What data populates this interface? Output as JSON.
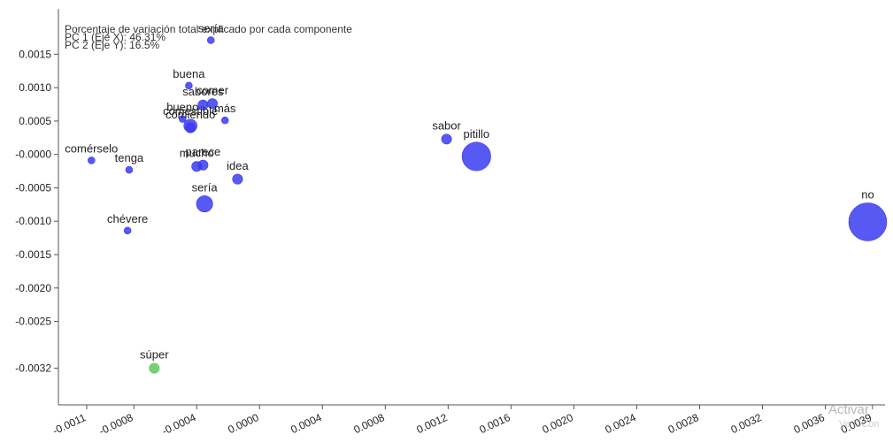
{
  "chart_data": {
    "type": "scatter",
    "title_lines": [
      "Porcentaje de variación total explicado por cada componente",
      "PC 1 (Eje X): 46.31%",
      "PC 2 (Eje Y): 16.5%"
    ],
    "xlim": [
      -0.00128,
      0.00398
    ],
    "ylim": [
      -0.00375,
      0.00218
    ],
    "x_ticks": [
      {
        "value": -0.0011,
        "label": "-0.0011"
      },
      {
        "value": -0.0008,
        "label": "-0.0008"
      },
      {
        "value": -0.0004,
        "label": "-0.0004"
      },
      {
        "value": 0.0,
        "label": "0.0000"
      },
      {
        "value": 0.0004,
        "label": "0.0004"
      },
      {
        "value": 0.0008,
        "label": "0.0008"
      },
      {
        "value": 0.0012,
        "label": "0.0012"
      },
      {
        "value": 0.0016,
        "label": "0.0016"
      },
      {
        "value": 0.002,
        "label": "0.0020"
      },
      {
        "value": 0.0024,
        "label": "0.0024"
      },
      {
        "value": 0.0028,
        "label": "0.0028"
      },
      {
        "value": 0.0032,
        "label": "0.0032"
      },
      {
        "value": 0.0036,
        "label": "0.0036"
      },
      {
        "value": 0.0039,
        "label": "0.0039"
      }
    ],
    "y_ticks": [
      {
        "value": 0.0015,
        "label": "0.0015"
      },
      {
        "value": 0.001,
        "label": "0.0010"
      },
      {
        "value": 0.0005,
        "label": "0.0005"
      },
      {
        "value": 0.0,
        "label": "-0.0000"
      },
      {
        "value": -0.0005,
        "label": "-0.0005"
      },
      {
        "value": -0.001,
        "label": "-0.0010"
      },
      {
        "value": -0.0015,
        "label": "-0.0015"
      },
      {
        "value": -0.002,
        "label": "-0.0020"
      },
      {
        "value": -0.0025,
        "label": "-0.0025"
      },
      {
        "value": -0.0032,
        "label": "-0.0032"
      }
    ],
    "grid": false,
    "colors": {
      "default": "#3b3bf0",
      "highlight": "#5ec95e",
      "axis": "#555555"
    },
    "points": [
      {
        "label": "sería",
        "x": -0.00031,
        "y": 0.00171,
        "size": 1
      },
      {
        "label": "buena",
        "x": -0.00045,
        "y": 0.00103,
        "size": 1
      },
      {
        "label": "sabores",
        "x": -0.00036,
        "y": 0.00074,
        "size": 2
      },
      {
        "label": "comer",
        "x": -0.0003,
        "y": 0.00076,
        "size": 2
      },
      {
        "label": "más",
        "x": -0.00022,
        "y": 0.00051,
        "size": 1
      },
      {
        "label": "bueno",
        "x": -0.00049,
        "y": 0.00053,
        "size": 1
      },
      {
        "label": "comestible",
        "x": -0.00044,
        "y": 0.00043,
        "size": 3
      },
      {
        "label": "comiendo",
        "x": -0.00044,
        "y": 0.0004,
        "size": 2
      },
      {
        "label": "mucho",
        "x": -0.0004,
        "y": -0.00018,
        "size": 2
      },
      {
        "label": "comérselo",
        "x": -0.00107,
        "y": -9e-05,
        "size": 1
      },
      {
        "label": "tenga",
        "x": -0.00083,
        "y": -0.00023,
        "size": 1
      },
      {
        "label": "parece",
        "x": -0.00036,
        "y": -0.00016,
        "size": 2
      },
      {
        "label": "idea",
        "x": -0.00014,
        "y": -0.00037,
        "size": 2
      },
      {
        "label": "sería",
        "x": -0.00035,
        "y": -0.00074,
        "size": 4
      },
      {
        "label": "chévere",
        "x": -0.00084,
        "y": -0.00114,
        "size": 1
      },
      {
        "label": "sabor",
        "x": 0.00119,
        "y": 0.00023,
        "size": 2
      },
      {
        "label": "pitillo",
        "x": 0.00138,
        "y": -3e-05,
        "size": 8
      },
      {
        "label": "no",
        "x": 0.00387,
        "y": -0.00101,
        "size": 11
      },
      {
        "label": "súper",
        "x": -0.00067,
        "y": -0.0032,
        "size": 2,
        "highlight": true
      }
    ]
  },
  "watermark": {
    "line1": "Activar",
    "line2": "Ve a Con"
  }
}
